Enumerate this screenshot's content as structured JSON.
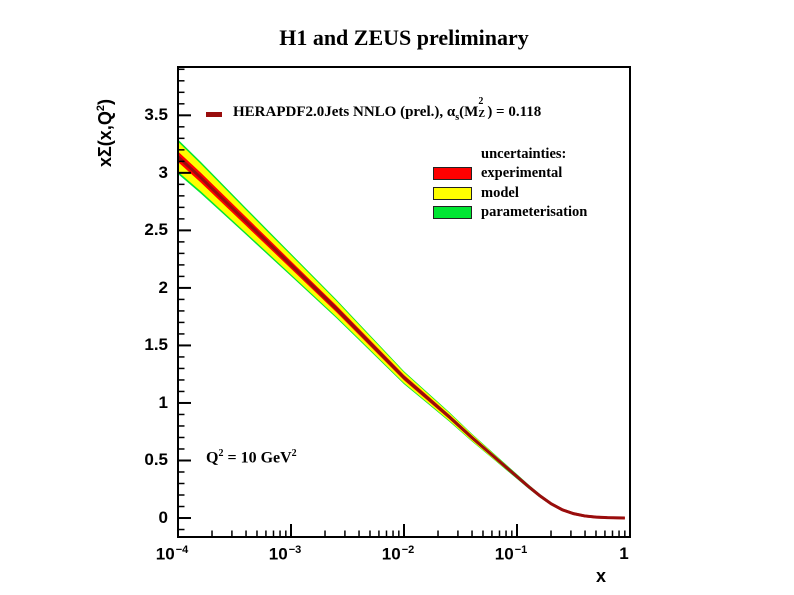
{
  "title": "H1 and ZEUS preliminary",
  "annotation": {
    "q_base": "Q",
    "q_sup": "2",
    "q_mid": " = 10 GeV",
    "q_sup2": "2"
  },
  "legend": {
    "series": {
      "marker_color": "#990d0d",
      "text_pre": "HERAPDF2.0Jets NNLO (prel.), ",
      "alpha": "α",
      "alpha_sub": "s",
      "paren_open": "(M",
      "m_sup": "2",
      "m_sub": "Z",
      "text_post": ") = 0.118"
    },
    "uncertainties_title": "uncertainties:",
    "entries": [
      {
        "label": "experimental",
        "color": "#ff0000"
      },
      {
        "label": "model",
        "color": "#ffff00"
      },
      {
        "label": "parameterisation",
        "color": "#00e632"
      }
    ]
  },
  "axes": {
    "x": {
      "title": "x",
      "scale": "log",
      "tick_labels": [
        {
          "base": "10",
          "exp": "−4"
        },
        {
          "base": "10",
          "exp": "−3"
        },
        {
          "base": "10",
          "exp": "−2"
        },
        {
          "base": "10",
          "exp": "−1"
        },
        {
          "base": "1",
          "exp": ""
        }
      ]
    },
    "y": {
      "title_pre": "xΣ(x,Q",
      "title_sup": "2",
      "title_post": ")",
      "tick_labels": [
        "0",
        "0.5",
        "1",
        "1.5",
        "2",
        "2.5",
        "3",
        "3.5"
      ],
      "tick_values": [
        0,
        0.5,
        1,
        1.5,
        2,
        2.5,
        3,
        3.5
      ]
    }
  },
  "chart_data": {
    "type": "area",
    "title": "H1 and ZEUS preliminary",
    "xlabel": "x",
    "ylabel": "xΣ(x,Q²)",
    "x_scale": "log",
    "xlim": [
      0.0001,
      1
    ],
    "ylim": [
      -0.165,
      3.92
    ],
    "grid": false,
    "annotation": "Q² = 10 GeV²",
    "series_name": "HERAPDF2.0Jets NNLO (prel.), αs(MZ²) = 0.118",
    "x_log10": [
      -4.0,
      -3.8,
      -3.6,
      -3.4,
      -3.2,
      -3.0,
      -2.8,
      -2.6,
      -2.4,
      -2.2,
      -2.0,
      -1.8,
      -1.6,
      -1.4,
      -1.2,
      -1.0,
      -0.9,
      -0.8,
      -0.7,
      -0.6,
      -0.5,
      -0.4,
      -0.3,
      -0.2,
      -0.1,
      -0.046
    ],
    "central": [
      3.14,
      2.96,
      2.77,
      2.58,
      2.39,
      2.2,
      2.01,
      1.82,
      1.62,
      1.42,
      1.22,
      1.05,
      0.88,
      0.7,
      0.53,
      0.36,
      0.275,
      0.195,
      0.125,
      0.072,
      0.038,
      0.018,
      0.008,
      0.003,
      0.001,
      0.0
    ],
    "bands": {
      "experimental_half": [
        0.046,
        0.043,
        0.041,
        0.038,
        0.036,
        0.033,
        0.031,
        0.029,
        0.027,
        0.025,
        0.023,
        0.021,
        0.019,
        0.018,
        0.016,
        0.015,
        0.014,
        0.014,
        0.013,
        0.013,
        0.012,
        0.012,
        0.012,
        0.011,
        0.011,
        0.011
      ],
      "model_half": [
        0.13,
        0.119,
        0.109,
        0.099,
        0.091,
        0.084,
        0.076,
        0.068,
        0.061,
        0.054,
        0.047,
        0.04,
        0.034,
        0.028,
        0.022,
        0.016,
        0.014,
        0.012,
        0.01,
        0.009,
        0.008,
        0.007,
        0.006,
        0.005,
        0.004,
        0.004
      ],
      "parameterisation_half": [
        0.15,
        0.138,
        0.127,
        0.116,
        0.107,
        0.098,
        0.089,
        0.08,
        0.072,
        0.064,
        0.056,
        0.048,
        0.041,
        0.034,
        0.027,
        0.021,
        0.018,
        0.016,
        0.014,
        0.012,
        0.011,
        0.01,
        0.009,
        0.007,
        0.006,
        0.006
      ]
    },
    "colors": {
      "central_line": "#990d0d",
      "experimental": "#ff0000",
      "model": "#ffff00",
      "parameterisation": "#00e632"
    }
  }
}
